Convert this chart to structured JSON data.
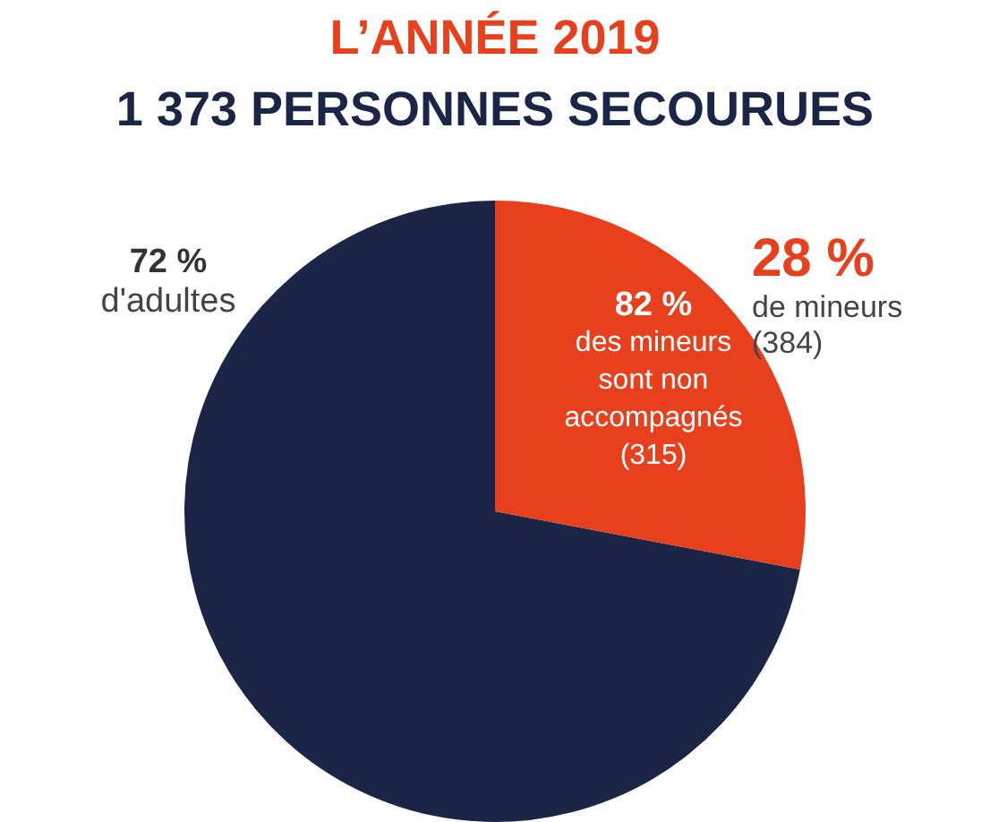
{
  "chart_data": {
    "type": "pie",
    "title": "L’ANNÉE 2019",
    "subtitle": "1 373 PERSONNES SECOURUES",
    "categories": [
      "d'adultes",
      "de mineurs"
    ],
    "values": [
      72,
      28
    ],
    "colors": [
      "#1b2646",
      "#e8401c"
    ],
    "value_labels": [
      "72 %",
      "28 %"
    ],
    "annotations": [
      "(384)",
      "82 %",
      "des mineurs sont non accompagnés (315)"
    ],
    "legend": false
  }
}
